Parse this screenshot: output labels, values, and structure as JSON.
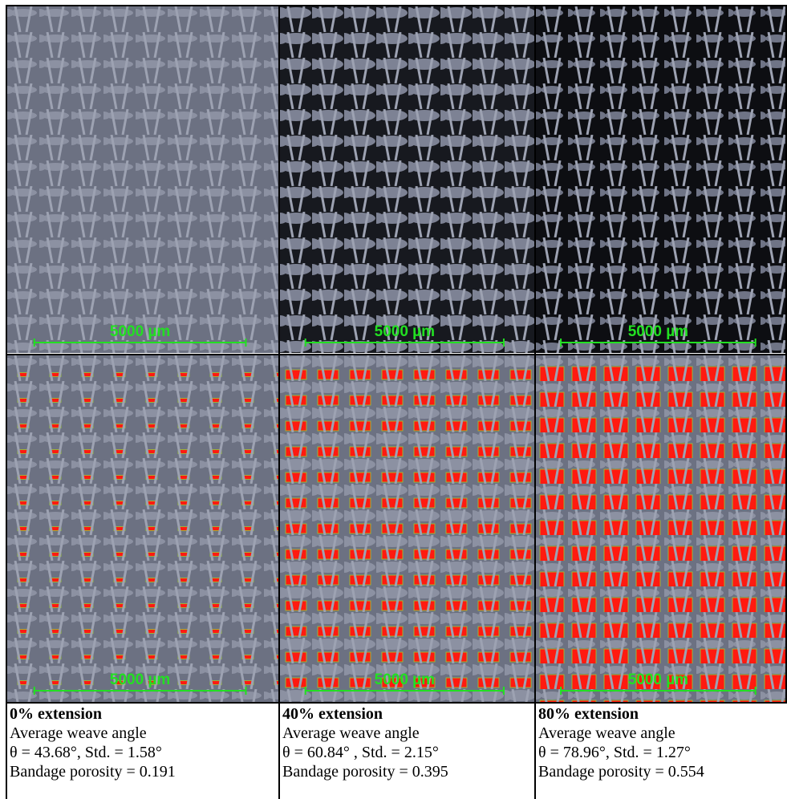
{
  "columns": [
    {
      "photo_scale": "5000 µm",
      "overlay_scale": "5000 µm",
      "extension": "0% extension",
      "angle_label": "Average weave angle",
      "angle": "θ = 43.68°, Std. = 1.58°",
      "porosity": "Bandage porosity = 0.191"
    },
    {
      "photo_scale": "5000 µm",
      "overlay_scale": "5000 µm",
      "extension": "40% extension",
      "angle_label": "Average weave angle",
      "angle": "θ = 60.84° ,  Std. = 2.15°",
      "porosity": "Bandage porosity = 0.395"
    },
    {
      "photo_scale": "5000 µm",
      "overlay_scale": "5000 µm",
      "extension": "80% extension",
      "angle_label": "Average weave angle",
      "angle": "θ = 78.96°,  Std. = 1.27°",
      "porosity": "Bandage porosity = 0.554"
    }
  ]
}
